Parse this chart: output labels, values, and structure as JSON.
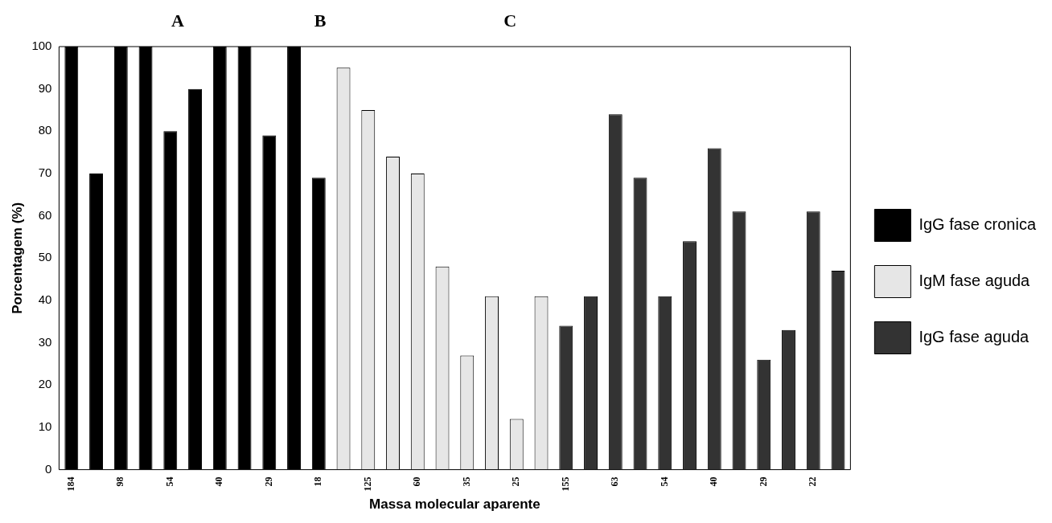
{
  "chart_data": {
    "type": "bar",
    "xlabel": "Massa molecular aparente",
    "ylabel": "Porcentagem (%)",
    "categories": [
      "184",
      null,
      "98",
      null,
      "54",
      null,
      "40",
      null,
      "29",
      null,
      "18",
      null,
      "125",
      null,
      "60",
      null,
      "35",
      null,
      "25",
      null,
      "155",
      null,
      "63",
      null,
      "54",
      null,
      "40",
      null,
      "29",
      null,
      "22",
      null
    ],
    "series": [
      {
        "name": "IgG fase cronica",
        "color": "#000000",
        "values": [
          100,
          70,
          100,
          100,
          80,
          90,
          100,
          100,
          79,
          100,
          69,
          null,
          null,
          null,
          null,
          null,
          null,
          null,
          null,
          null,
          null,
          null,
          null,
          null,
          null,
          null,
          null,
          null,
          null,
          null,
          null,
          null
        ]
      },
      {
        "name": "IgM fase aguda",
        "color": "#e6e6e6",
        "values": [
          null,
          null,
          null,
          null,
          null,
          null,
          null,
          null,
          null,
          null,
          null,
          95,
          85,
          74,
          70,
          48,
          27,
          41,
          12,
          41,
          null,
          null,
          null,
          null,
          null,
          null,
          null,
          null,
          null,
          null,
          null,
          null
        ]
      },
      {
        "name": "IgG fase aguda",
        "color": "#333333",
        "values": [
          null,
          null,
          null,
          null,
          null,
          null,
          null,
          null,
          null,
          null,
          null,
          null,
          null,
          null,
          null,
          null,
          null,
          null,
          null,
          null,
          34,
          41,
          84,
          69,
          41,
          54,
          76,
          61,
          26,
          33,
          61,
          47
        ]
      }
    ],
    "ylim": [
      0,
      100
    ],
    "yticks": [
      0,
      10,
      20,
      30,
      40,
      50,
      60,
      70,
      80,
      90,
      100
    ],
    "grid": false,
    "legend": "right",
    "annotations": [
      "A",
      "B",
      "C"
    ]
  }
}
